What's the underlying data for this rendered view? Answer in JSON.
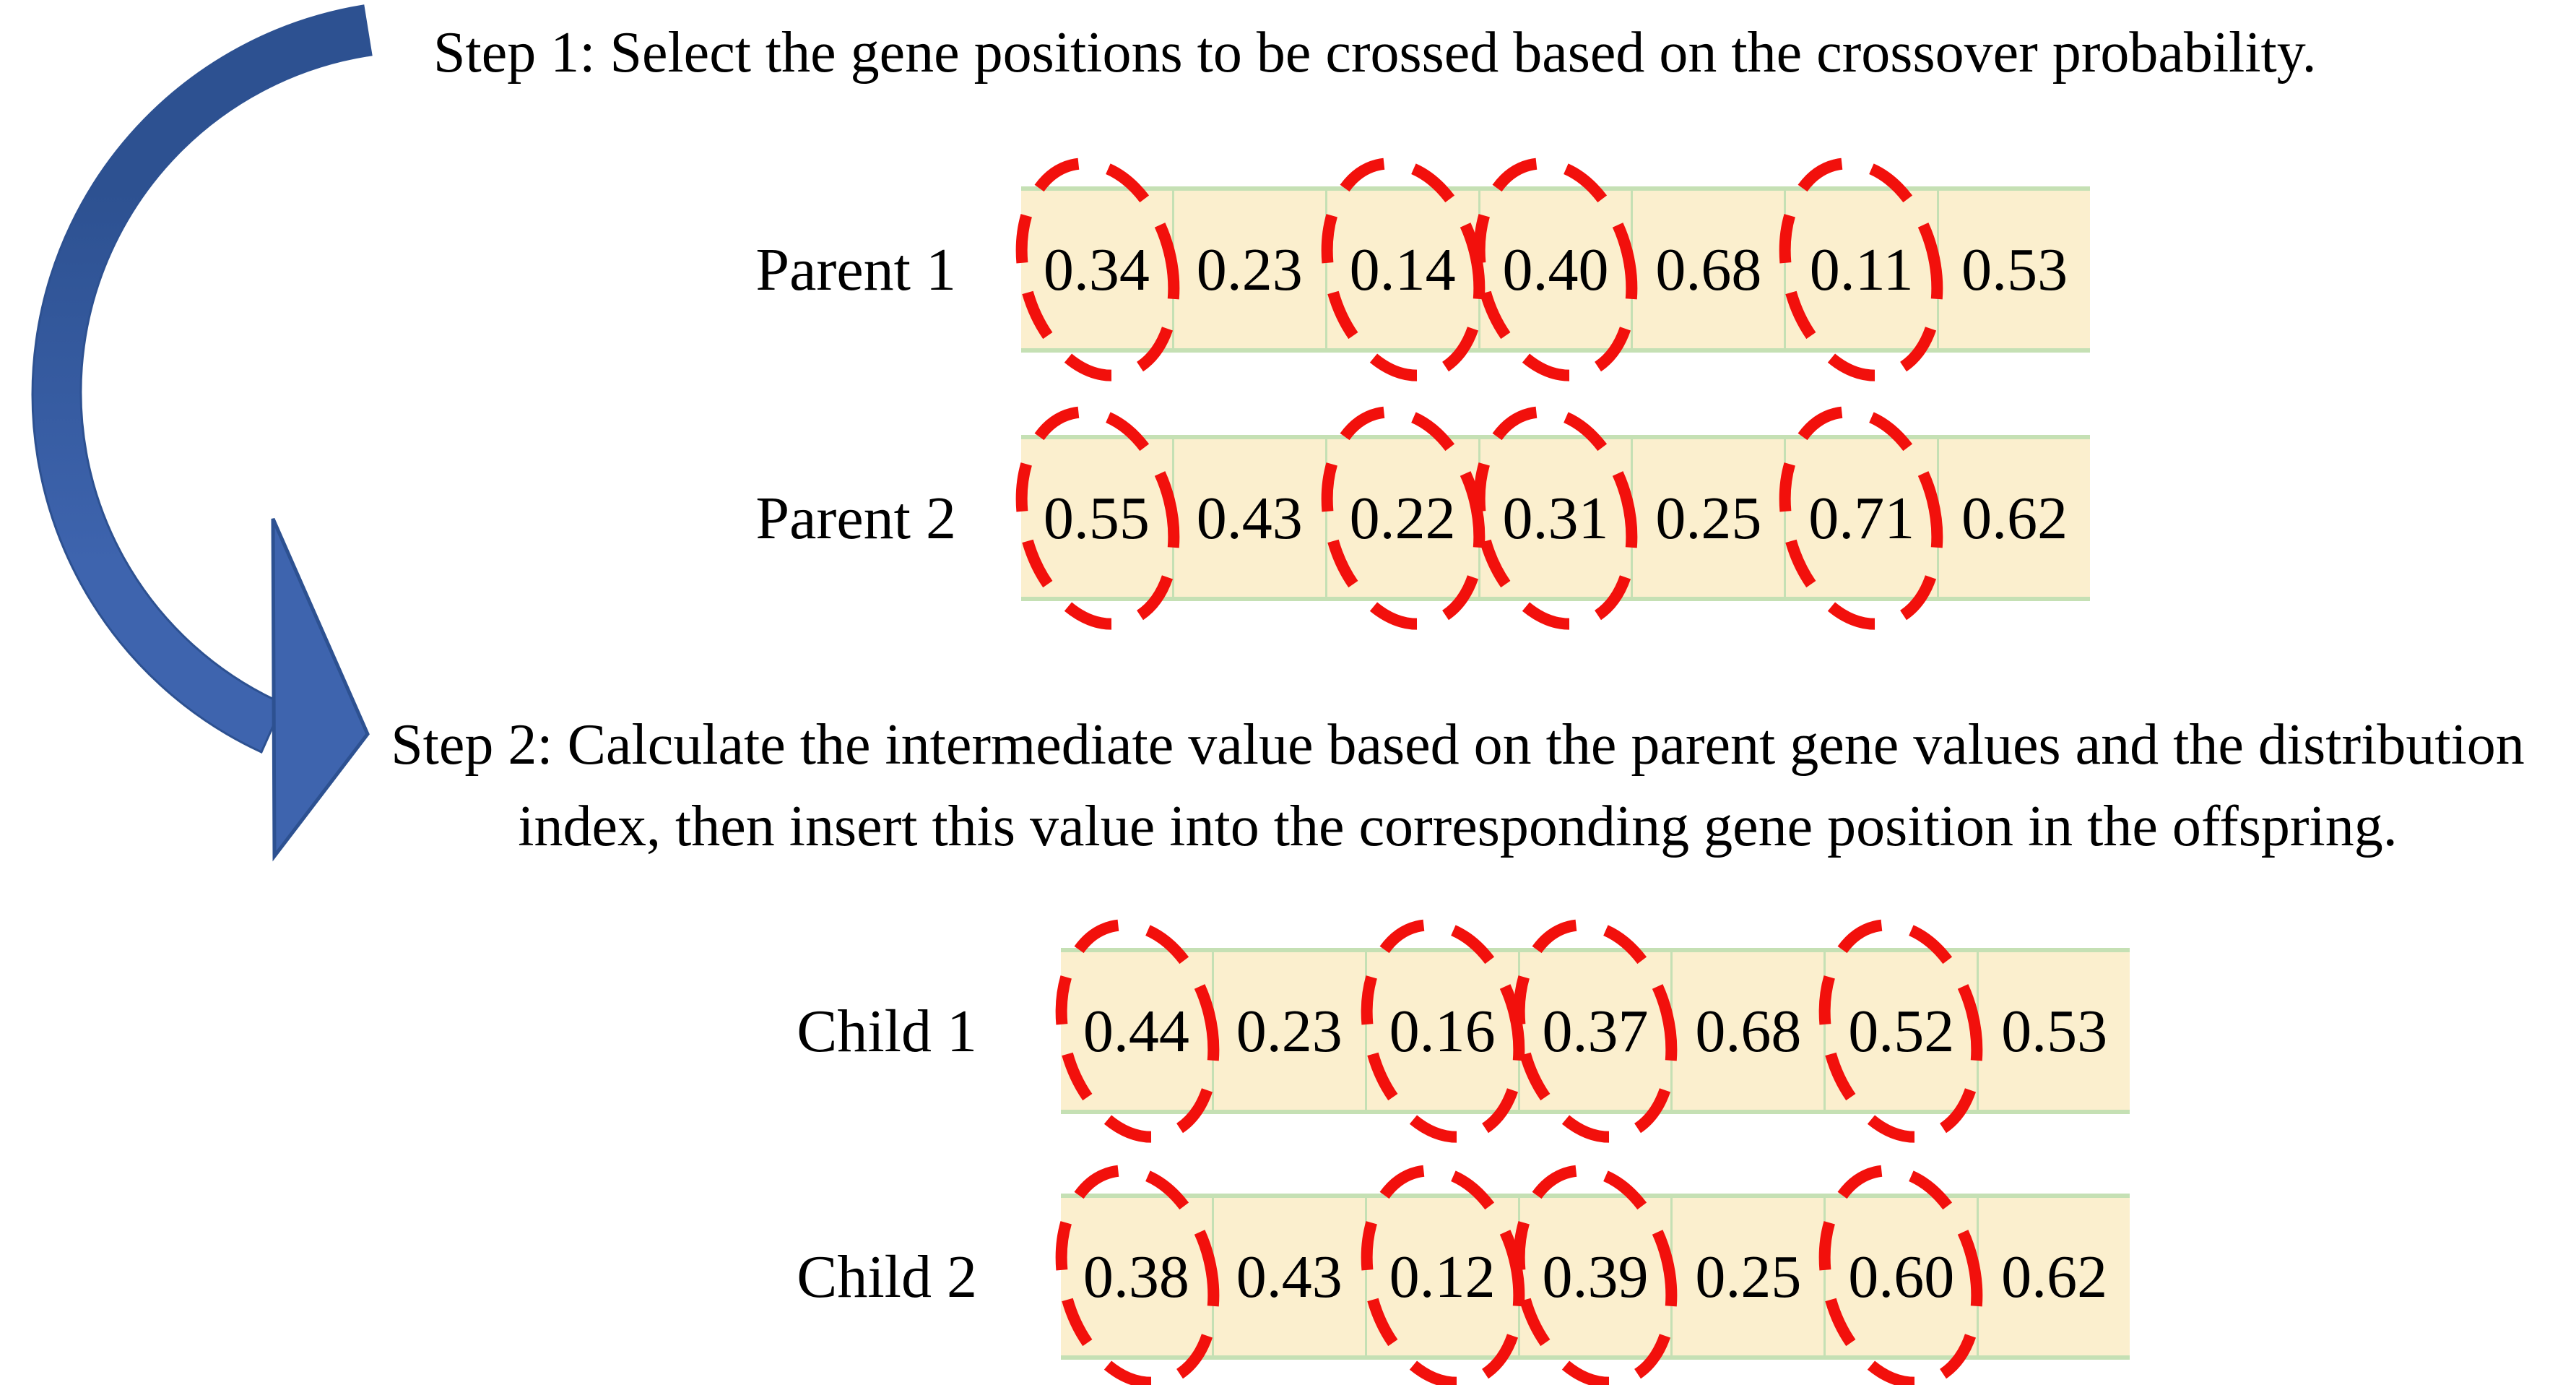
{
  "captions": {
    "step1": "Step 1: Select the gene positions to be crossed based on the crossover probability.",
    "step2_line1": "Step 2: Calculate the intermediate value based on the parent gene values and the distribution",
    "step2_line2": "index, then insert this value into the corresponding gene position in the offspring."
  },
  "rows": [
    {
      "label": "Parent 1",
      "group": "parent",
      "values": [
        "0.34",
        "0.23",
        "0.14",
        "0.40",
        "0.68",
        "0.11",
        "0.53"
      ],
      "circled": [
        0,
        2,
        3,
        5
      ]
    },
    {
      "label": "Parent 2",
      "group": "parent",
      "values": [
        "0.55",
        "0.43",
        "0.22",
        "0.31",
        "0.25",
        "0.71",
        "0.62"
      ],
      "circled": [
        0,
        2,
        3,
        5
      ]
    },
    {
      "label": "Child 1",
      "group": "child",
      "values": [
        "0.44",
        "0.23",
        "0.16",
        "0.37",
        "0.68",
        "0.52",
        "0.53"
      ],
      "circled": [
        0,
        2,
        3,
        5
      ]
    },
    {
      "label": "Child 2",
      "group": "child",
      "values": [
        "0.38",
        "0.43",
        "0.12",
        "0.39",
        "0.25",
        "0.60",
        "0.62"
      ],
      "circled": [
        0,
        2,
        3,
        5
      ]
    }
  ],
  "icons": {
    "flow_arrow": "curved-flow-arrow",
    "gene_highlight": "dashed-selection-circle"
  },
  "colors": {
    "cell_fill": "#FBEFCE",
    "cell_border": "#C5E0B4",
    "highlight_red": "#F2100C",
    "arrow_dark_blue": "#2D5191",
    "arrow_light_blue": "#3E64AE",
    "text": "#000000"
  }
}
